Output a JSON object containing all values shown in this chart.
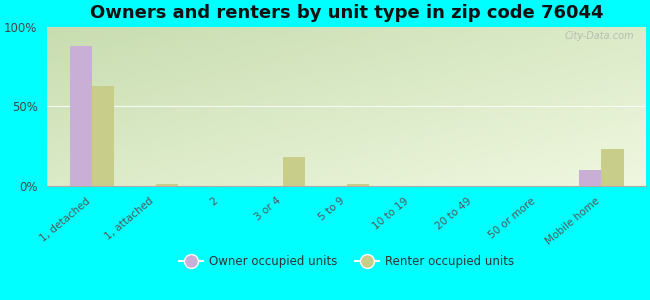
{
  "title": "Owners and renters by unit type in zip code 76044",
  "categories": [
    "1, detached",
    "1, attached",
    "2",
    "3 or 4",
    "5 to 9",
    "10 to 19",
    "20 to 49",
    "50 or more",
    "Mobile home"
  ],
  "owner_values": [
    88,
    0,
    0,
    0,
    0,
    0,
    0,
    0,
    10
  ],
  "renter_values": [
    63,
    1,
    0,
    18,
    1,
    0,
    0,
    0,
    23
  ],
  "owner_color": "#c9aed6",
  "renter_color": "#c8cd8a",
  "background_color": "#00ffff",
  "plot_bg_color_topleft": "#c8ddb0",
  "plot_bg_color_topright": "#d8eec0",
  "plot_bg_color_bottom": "#f0f8e0",
  "ylim": [
    0,
    100
  ],
  "yticks": [
    0,
    50,
    100
  ],
  "ytick_labels": [
    "0%",
    "50%",
    "100%"
  ],
  "bar_width": 0.35,
  "legend_owner": "Owner occupied units",
  "legend_renter": "Renter occupied units",
  "title_fontsize": 13,
  "watermark": "City-Data.com"
}
